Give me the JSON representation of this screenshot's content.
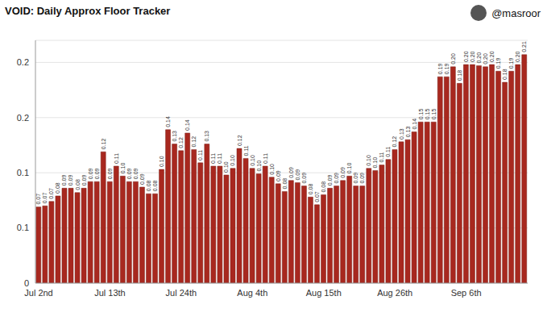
{
  "chart_data": {
    "type": "bar",
    "title": "VOID: Daily Approx Floor Tracker",
    "annotations": [
      "@masroor"
    ],
    "categories": [
      "Jul 2nd",
      null,
      null,
      null,
      null,
      null,
      null,
      null,
      null,
      null,
      null,
      "Jul 13th",
      null,
      null,
      null,
      null,
      null,
      null,
      null,
      null,
      null,
      null,
      "Jul 24th",
      null,
      null,
      null,
      null,
      null,
      null,
      null,
      null,
      null,
      null,
      "Aug 4th",
      null,
      null,
      null,
      null,
      null,
      null,
      null,
      null,
      null,
      null,
      "Aug 15th",
      null,
      null,
      null,
      null,
      null,
      null,
      null,
      null,
      null,
      null,
      "Aug 26th",
      null,
      null,
      null,
      null,
      null,
      null,
      null,
      null,
      null,
      null,
      "Sep 6th",
      null,
      null,
      null,
      null,
      null,
      null,
      null,
      null,
      null
    ],
    "values": [
      0.069,
      0.07,
      0.074,
      0.079,
      0.086,
      0.086,
      0.082,
      0.086,
      0.092,
      0.092,
      0.119,
      0.092,
      0.106,
      0.097,
      0.092,
      0.092,
      0.087,
      0.081,
      0.081,
      0.103,
      0.139,
      0.126,
      0.12,
      0.136,
      0.121,
      0.109,
      0.126,
      0.106,
      0.106,
      0.098,
      0.104,
      0.122,
      0.113,
      0.104,
      0.099,
      0.106,
      0.096,
      0.09,
      0.083,
      0.093,
      0.091,
      0.088,
      0.078,
      0.071,
      0.08,
      0.086,
      0.088,
      0.093,
      0.097,
      0.088,
      0.088,
      0.104,
      0.102,
      0.107,
      0.112,
      0.121,
      0.128,
      0.13,
      0.137,
      0.146,
      0.146,
      0.146,
      0.187,
      0.187,
      0.196,
      0.181,
      0.198,
      0.198,
      0.197,
      0.196,
      0.198,
      0.192,
      0.182,
      0.192,
      0.198,
      0.207
    ],
    "value_labels": [
      "0.07",
      "0.07",
      "0.07",
      "0.08",
      "0.09",
      "0.09",
      "0.08",
      "0.09",
      "0.09",
      "0.09",
      "0.12",
      "0.09",
      "0.11",
      "0.10",
      "0.09",
      "0.09",
      "0.09",
      "0.08",
      "0.08",
      "0.10",
      "0.14",
      "0.13",
      "0.12",
      "0.14",
      "0.12",
      "0.11",
      "0.13",
      "0.11",
      "0.11",
      "0.10",
      "0.10",
      "0.12",
      "0.11",
      "0.10",
      "0.10",
      "0.11",
      "0.10",
      "0.09",
      "0.08",
      "0.09",
      "0.09",
      "0.09",
      "0.08",
      "0.07",
      "0.08",
      "0.09",
      "0.09",
      "0.09",
      "0.10",
      "0.09",
      "0.09",
      "0.10",
      "0.10",
      "0.11",
      "0.11",
      "0.12",
      "0.13",
      "0.13",
      "0.14",
      "0.15",
      "0.15",
      "0.15",
      "0.19",
      "0.19",
      "0.20",
      "0.18",
      "0.20",
      "0.20",
      "0.20",
      "0.20",
      "0.20",
      "0.19",
      "0.18",
      "0.19",
      "0.20",
      "0.21"
    ],
    "color": "#a8281f",
    "ylim": [
      0,
      0.22
    ],
    "yticks": [
      0,
      {
        "value": 0.05,
        "label": "0.1"
      },
      {
        "value": 0.1,
        "label": "0.1"
      },
      {
        "value": 0.15,
        "label": "0.2"
      },
      {
        "value": 0.2,
        "label": "0.2"
      }
    ],
    "grid": true,
    "data_labels": true
  }
}
